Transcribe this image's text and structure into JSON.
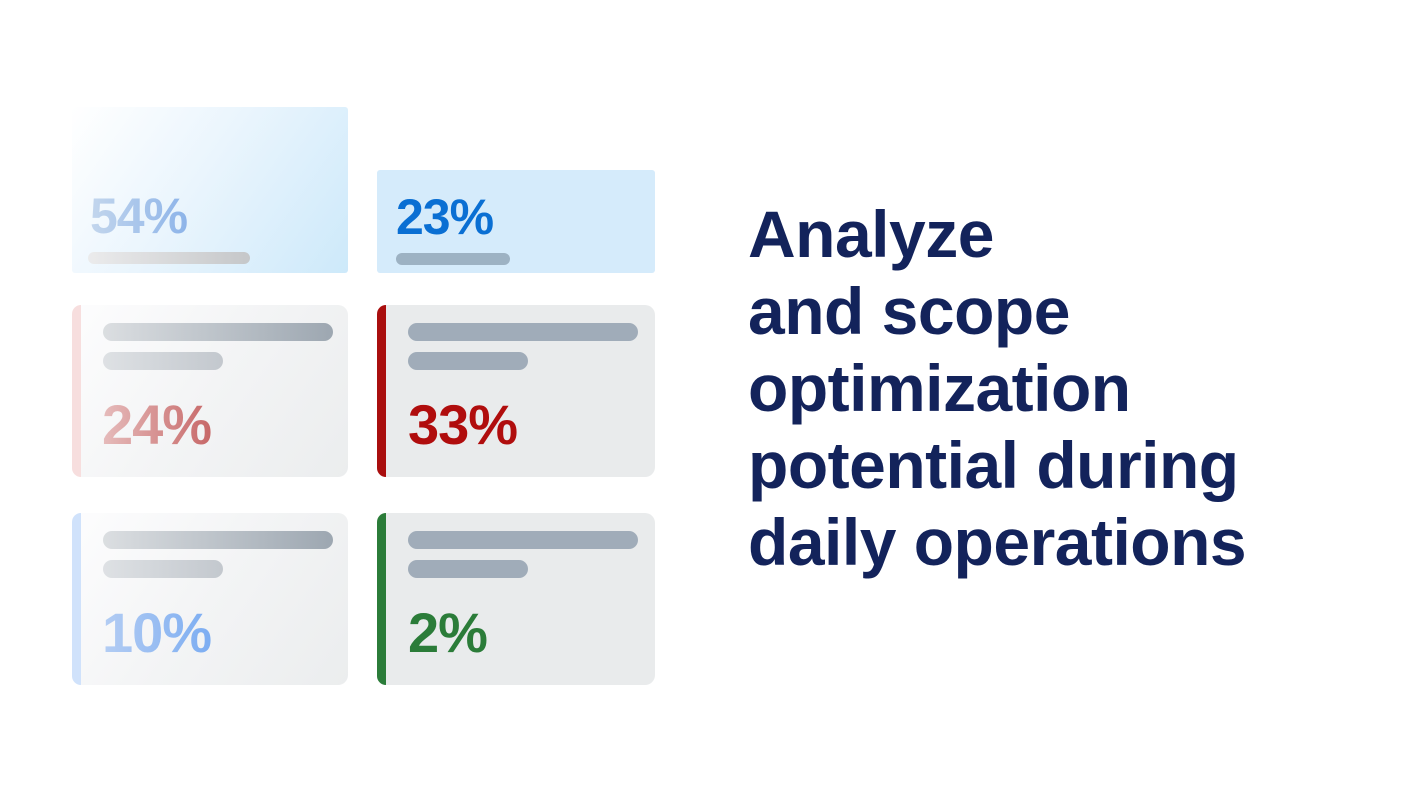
{
  "heading": {
    "lines": [
      "Analyze",
      "and scope",
      "optimization",
      "potential during",
      "daily operations"
    ],
    "full_text": "Analyze and scope optimization potential during daily operations",
    "color": "#13235b"
  },
  "cards": [
    {
      "value": "54%",
      "theme": "blue-gradient-highlight",
      "background_from": "#ffffff",
      "background_to": "#cde9fa",
      "value_color_from": "#c3d6ed",
      "value_color_to": "#8db4e9",
      "placeholder_bars": 1
    },
    {
      "value": "23%",
      "theme": "blue-highlight",
      "background": "#d5ebfb",
      "value_color": "#0a6fd3",
      "bar_color": "#9db2c3",
      "placeholder_bars": 1
    },
    {
      "value": "24%",
      "theme": "red-faded",
      "stripe_color": "#f7dede",
      "value_color_from": "#e6bcbc",
      "value_color_to": "#c76868",
      "placeholder_bars": 2
    },
    {
      "value": "33%",
      "theme": "red",
      "stripe_color": "#a90e0e",
      "background": "#e9ebec",
      "value_color": "#b00d0d",
      "bar_color": "#a0acb9",
      "placeholder_bars": 2
    },
    {
      "value": "10%",
      "theme": "blue-faded",
      "stripe_color": "#d0e2fb",
      "value_color_from": "#b4cdf3",
      "value_color_to": "#7cadf2",
      "placeholder_bars": 2
    },
    {
      "value": "2%",
      "theme": "green",
      "stripe_color": "#2b7c39",
      "background": "#e9ebec",
      "value_color": "#2b7c39",
      "bar_color": "#a0acb9",
      "placeholder_bars": 2
    }
  ]
}
